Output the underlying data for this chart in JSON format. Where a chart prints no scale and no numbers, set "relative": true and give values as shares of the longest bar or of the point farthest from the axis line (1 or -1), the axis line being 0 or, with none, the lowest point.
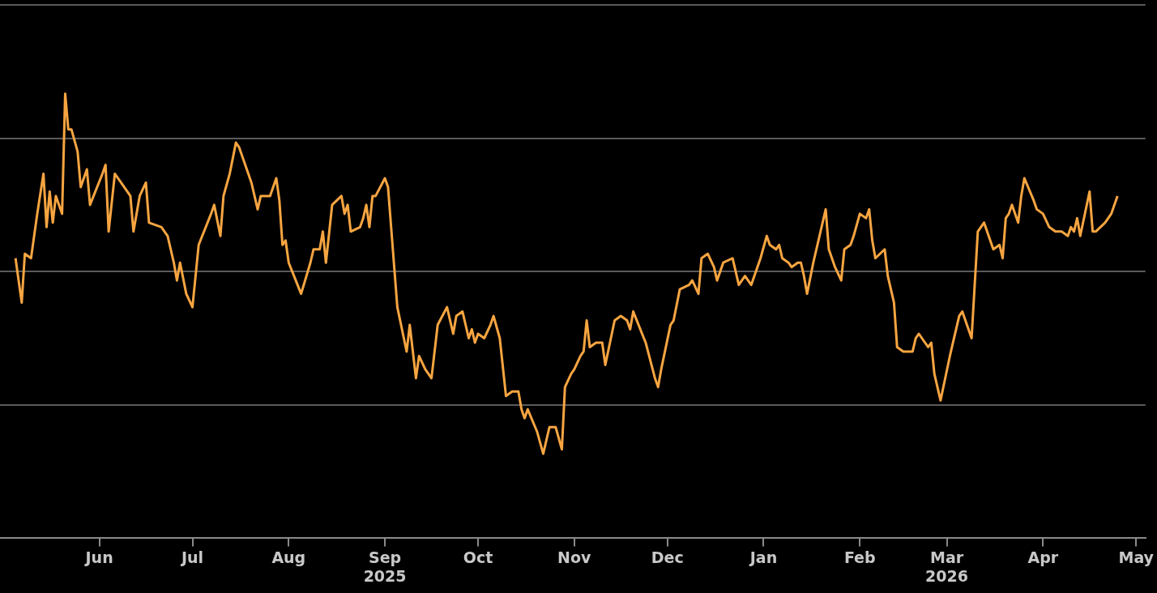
{
  "chart_data": {
    "type": "line",
    "relative": true,
    "grid": "y",
    "legend": false,
    "xlim": [
      "2025-04-30",
      "2026-05-04"
    ],
    "xticks": [
      {
        "value": "2025-06-01",
        "label": "Jun"
      },
      {
        "value": "2025-07-01",
        "label": "Jul"
      },
      {
        "value": "2025-08-01",
        "label": "Aug"
      },
      {
        "value": "2025-09-01",
        "label": "Sep\n2025"
      },
      {
        "value": "2025-10-01",
        "label": "Oct"
      },
      {
        "value": "2025-11-01",
        "label": "Nov"
      },
      {
        "value": "2025-12-01",
        "label": "Dec"
      },
      {
        "value": "2026-01-01",
        "label": "Jan"
      },
      {
        "value": "2026-02-01",
        "label": "Feb"
      },
      {
        "value": "2026-03-01",
        "label": "Mar\n2026"
      },
      {
        "value": "2026-04-01",
        "label": "Apr"
      },
      {
        "value": "2026-05-01",
        "label": "May"
      }
    ],
    "series": [
      {
        "color": "#f7a541",
        "x": [
          "2025-05-05",
          "2025-05-07",
          "2025-05-08",
          "2025-05-10",
          "2025-05-12",
          "2025-05-14",
          "2025-05-15",
          "2025-05-16",
          "2025-05-17",
          "2025-05-18",
          "2025-05-20",
          "2025-05-21",
          "2025-05-22",
          "2025-05-23",
          "2025-05-25",
          "2025-05-26",
          "2025-05-28",
          "2025-05-29",
          "2025-06-02",
          "2025-06-03",
          "2025-06-04",
          "2025-06-06",
          "2025-06-08",
          "2025-06-11",
          "2025-06-12",
          "2025-06-14",
          "2025-06-16",
          "2025-06-17",
          "2025-06-21",
          "2025-06-23",
          "2025-06-25",
          "2025-06-26",
          "2025-06-27",
          "2025-06-29",
          "2025-07-01",
          "2025-07-03",
          "2025-07-07",
          "2025-07-08",
          "2025-07-10",
          "2025-07-11",
          "2025-07-13",
          "2025-07-15",
          "2025-07-16",
          "2025-07-20",
          "2025-07-22",
          "2025-07-23",
          "2025-07-26",
          "2025-07-28",
          "2025-07-29",
          "2025-07-30",
          "2025-07-31",
          "2025-08-01",
          "2025-08-05",
          "2025-08-08",
          "2025-08-09",
          "2025-08-11",
          "2025-08-12",
          "2025-08-13",
          "2025-08-15",
          "2025-08-18",
          "2025-08-19",
          "2025-08-20",
          "2025-08-21",
          "2025-08-24",
          "2025-08-25",
          "2025-08-26",
          "2025-08-27",
          "2025-08-28",
          "2025-08-29",
          "2025-09-01",
          "2025-09-02",
          "2025-09-05",
          "2025-09-08",
          "2025-09-09",
          "2025-09-10",
          "2025-09-11",
          "2025-09-12",
          "2025-09-14",
          "2025-09-16",
          "2025-09-18",
          "2025-09-21",
          "2025-09-23",
          "2025-09-24",
          "2025-09-26",
          "2025-09-28",
          "2025-09-29",
          "2025-09-30",
          "2025-10-01",
          "2025-10-03",
          "2025-10-05",
          "2025-10-06",
          "2025-10-08",
          "2025-10-10",
          "2025-10-12",
          "2025-10-14",
          "2025-10-15",
          "2025-10-16",
          "2025-10-17",
          "2025-10-20",
          "2025-10-22",
          "2025-10-24",
          "2025-10-26",
          "2025-10-28",
          "2025-10-29",
          "2025-10-31",
          "2025-11-01",
          "2025-11-03",
          "2025-11-04",
          "2025-11-05",
          "2025-11-06",
          "2025-11-08",
          "2025-11-10",
          "2025-11-11",
          "2025-11-14",
          "2025-11-16",
          "2025-11-18",
          "2025-11-19",
          "2025-11-20",
          "2025-11-24",
          "2025-11-27",
          "2025-11-28",
          "2025-11-29",
          "2025-12-02",
          "2025-12-03",
          "2025-12-05",
          "2025-12-08",
          "2025-12-09",
          "2025-12-11",
          "2025-12-12",
          "2025-12-14",
          "2025-12-16",
          "2025-12-17",
          "2025-12-19",
          "2025-12-22",
          "2025-12-23",
          "2025-12-24",
          "2025-12-26",
          "2025-12-28",
          "2025-12-31",
          "2026-01-02",
          "2026-01-03",
          "2026-01-05",
          "2026-01-06",
          "2026-01-07",
          "2026-01-09",
          "2026-01-10",
          "2026-01-12",
          "2026-01-13",
          "2026-01-14",
          "2026-01-15",
          "2026-01-17",
          "2026-01-20",
          "2026-01-21",
          "2026-01-22",
          "2026-01-24",
          "2026-01-26",
          "2026-01-27",
          "2026-01-29",
          "2026-01-30",
          "2026-02-01",
          "2026-02-03",
          "2026-02-04",
          "2026-02-05",
          "2026-02-06",
          "2026-02-09",
          "2026-02-10",
          "2026-02-12",
          "2026-02-13",
          "2026-02-15",
          "2026-02-18",
          "2026-02-19",
          "2026-02-20",
          "2026-02-22",
          "2026-02-23",
          "2026-02-24",
          "2026-02-25",
          "2026-02-27",
          "2026-03-02",
          "2026-03-05",
          "2026-03-06",
          "2026-03-09",
          "2026-03-11",
          "2026-03-13",
          "2026-03-15",
          "2026-03-16",
          "2026-03-18",
          "2026-03-19",
          "2026-03-20",
          "2026-03-21",
          "2026-03-22",
          "2026-03-24",
          "2026-03-25",
          "2026-03-26",
          "2026-03-29",
          "2026-03-30",
          "2026-04-01",
          "2026-04-03",
          "2026-04-05",
          "2026-04-07",
          "2026-04-09",
          "2026-04-10",
          "2026-04-11",
          "2026-04-12",
          "2026-04-13",
          "2026-04-16",
          "2026-04-17",
          "2026-04-18",
          "2026-04-21",
          "2026-04-23",
          "2026-04-25"
        ],
        "values": [
          0.63,
          0.53,
          0.64,
          0.63,
          0.73,
          0.82,
          0.7,
          0.78,
          0.71,
          0.77,
          0.73,
          1.0,
          0.92,
          0.92,
          0.87,
          0.79,
          0.83,
          0.75,
          0.82,
          0.84,
          0.69,
          0.82,
          0.8,
          0.77,
          0.69,
          0.77,
          0.8,
          0.71,
          0.7,
          0.68,
          0.62,
          0.58,
          0.62,
          0.55,
          0.52,
          0.66,
          0.73,
          0.75,
          0.68,
          0.77,
          0.82,
          0.89,
          0.88,
          0.8,
          0.74,
          0.77,
          0.77,
          0.81,
          0.76,
          0.66,
          0.67,
          0.62,
          0.55,
          0.62,
          0.65,
          0.65,
          0.69,
          0.62,
          0.75,
          0.77,
          0.73,
          0.75,
          0.69,
          0.7,
          0.72,
          0.75,
          0.7,
          0.77,
          0.77,
          0.81,
          0.79,
          0.52,
          0.42,
          0.48,
          0.42,
          0.36,
          0.41,
          0.38,
          0.36,
          0.48,
          0.52,
          0.46,
          0.5,
          0.51,
          0.45,
          0.47,
          0.44,
          0.46,
          0.45,
          0.48,
          0.5,
          0.45,
          0.32,
          0.33,
          0.33,
          0.29,
          0.27,
          0.29,
          0.24,
          0.19,
          0.25,
          0.25,
          0.2,
          0.34,
          0.37,
          0.38,
          0.41,
          0.42,
          0.49,
          0.43,
          0.44,
          0.44,
          0.39,
          0.49,
          0.5,
          0.49,
          0.47,
          0.51,
          0.44,
          0.36,
          0.34,
          0.38,
          0.48,
          0.49,
          0.56,
          0.57,
          0.58,
          0.55,
          0.63,
          0.64,
          0.61,
          0.58,
          0.62,
          0.63,
          0.6,
          0.57,
          0.59,
          0.57,
          0.63,
          0.68,
          0.66,
          0.65,
          0.66,
          0.63,
          0.62,
          0.61,
          0.62,
          0.62,
          0.59,
          0.55,
          0.62,
          0.71,
          0.74,
          0.65,
          0.61,
          0.58,
          0.65,
          0.66,
          0.68,
          0.73,
          0.72,
          0.74,
          0.67,
          0.63,
          0.65,
          0.59,
          0.53,
          0.43,
          0.42,
          0.42,
          0.45,
          0.46,
          0.44,
          0.43,
          0.44,
          0.37,
          0.31,
          0.41,
          0.5,
          0.51,
          0.45,
          0.69,
          0.71,
          0.67,
          0.65,
          0.66,
          0.63,
          0.72,
          0.73,
          0.75,
          0.71,
          0.77,
          0.81,
          0.76,
          0.74,
          0.73,
          0.7,
          0.69,
          0.69,
          0.68,
          0.7,
          0.69,
          0.72,
          0.68,
          0.78,
          0.69,
          0.69,
          0.71,
          0.73,
          0.77
        ]
      }
    ]
  }
}
